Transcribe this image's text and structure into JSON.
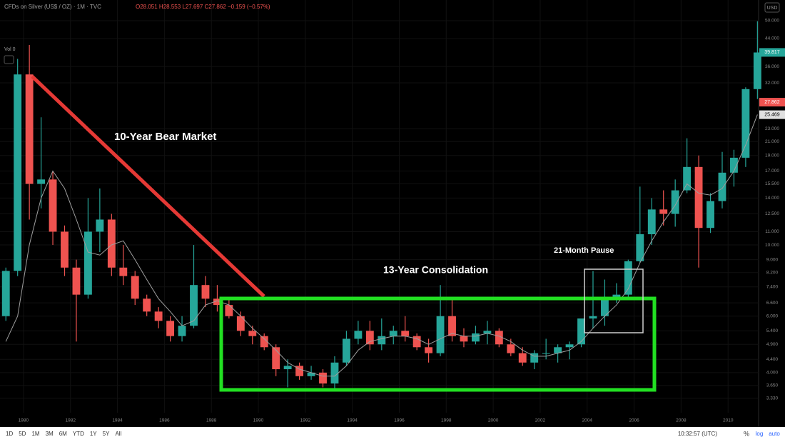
{
  "chart_data": {
    "type": "candlestick",
    "header": "CFDs on Silver (US$ / OZ) · 1M · TVC",
    "ohlc_legend": "O28.051 H28.553 L27.697 C27.862 −0.159 (−0.57%)",
    "volume_label": "Vol 0",
    "currency": "USD",
    "annotations": [
      "10-Year Bear Market",
      "13-Year Consolidation",
      "21-Month Pause"
    ],
    "log_scale": true,
    "up_color": "#26a69a",
    "down_color": "#ef5350",
    "ma_color": "#9e9e9e",
    "x": [
      1979.25,
      1979.75,
      1980.25,
      1980.75,
      1981.25,
      1981.75,
      1982.25,
      1982.75,
      1983.25,
      1983.75,
      1984.25,
      1984.75,
      1985.25,
      1985.75,
      1986.25,
      1986.75,
      1987.25,
      1987.75,
      1988.25,
      1988.75,
      1989.25,
      1989.75,
      1990.25,
      1990.75,
      1991.25,
      1991.75,
      1992.25,
      1992.75,
      1993.25,
      1993.75,
      1994.25,
      1994.75,
      1995.25,
      1995.75,
      1996.25,
      1996.75,
      1997.25,
      1997.75,
      1998.25,
      1998.75,
      1999.25,
      1999.75,
      2000.25,
      2000.75,
      2001.25,
      2001.75,
      2002.25,
      2002.75,
      2003.25,
      2003.75,
      2004.25,
      2004.75,
      2005.25,
      2005.75,
      2006.25,
      2006.75,
      2007.25,
      2007.75,
      2008.25,
      2008.75,
      2009.25,
      2009.75,
      2010.25,
      2010.75,
      2011.25
    ],
    "open": [
      6,
      8.3,
      34,
      15.5,
      16,
      11,
      8.5,
      7,
      11,
      12,
      8.5,
      8,
      6.8,
      6.2,
      5.8,
      5.2,
      5.6,
      7.5,
      6.8,
      6.5,
      6,
      5.4,
      5.2,
      4.8,
      4.1,
      4.2,
      3.9,
      4.0,
      3.7,
      4.3,
      5.1,
      5.4,
      4.9,
      5.2,
      5.4,
      5.2,
      4.8,
      4.6,
      6.0,
      5.2,
      5.0,
      5.3,
      5.4,
      4.9,
      4.6,
      4.3,
      4.6,
      4.6,
      4.8,
      4.9,
      5.9,
      6.0,
      6.8,
      7.0,
      8.9,
      10.8,
      12.9,
      12.5,
      14.8,
      17.5,
      11.3,
      13.7,
      16.8,
      18.7,
      30.6
    ],
    "high": [
      8.5,
      38,
      42,
      25,
      17,
      11.5,
      9,
      14,
      15,
      12.5,
      10,
      8.3,
      7,
      6.4,
      6,
      6,
      10,
      8,
      7.5,
      6.8,
      6.2,
      5.6,
      5.3,
      4.9,
      4.4,
      4.3,
      4.2,
      4.1,
      4.5,
      5.4,
      5.8,
      5.8,
      5.9,
      5.6,
      6.0,
      5.3,
      5.1,
      7.5,
      6.8,
      5.5,
      5.6,
      5.8,
      5.5,
      5.1,
      4.8,
      4.7,
      5.1,
      4.9,
      5.0,
      5.9,
      8.3,
      7.8,
      7.6,
      9.0,
      15.2,
      14.0,
      14.8,
      16.0,
      21.5,
      19.0,
      14.5,
      19.5,
      19.8,
      31,
      49.8
    ],
    "low": [
      5.8,
      8,
      12,
      13,
      10,
      8,
      5,
      6.8,
      9.5,
      8,
      7.5,
      6.5,
      6,
      5.5,
      5,
      5,
      5.5,
      6.4,
      6.2,
      5.9,
      5.2,
      4.9,
      4.7,
      3.9,
      3.6,
      3.8,
      3.8,
      3.6,
      3.55,
      4.2,
      4.9,
      4.7,
      4.7,
      4.9,
      5.0,
      4.7,
      4.3,
      4.5,
      5.0,
      4.8,
      4.9,
      4.9,
      4.8,
      4.5,
      4.2,
      4.1,
      4.4,
      4.3,
      4.4,
      4.8,
      5.5,
      5.6,
      6.6,
      6.9,
      8.8,
      10.0,
      11.5,
      11.4,
      14.5,
      8.5,
      10.9,
      13.0,
      15.2,
      17.5,
      28.5
    ],
    "close": [
      8.3,
      34,
      15.5,
      16,
      11,
      8.5,
      7,
      11,
      12,
      8.5,
      8,
      6.8,
      6.2,
      5.8,
      5.2,
      5.6,
      7.5,
      6.8,
      6.5,
      6,
      5.4,
      5.2,
      4.8,
      4.1,
      4.2,
      3.9,
      4.0,
      3.7,
      4.3,
      5.1,
      5.4,
      4.9,
      5.2,
      5.4,
      5.2,
      4.8,
      4.6,
      6.0,
      5.2,
      5.0,
      5.3,
      5.4,
      4.9,
      4.6,
      4.3,
      4.6,
      4.6,
      4.8,
      4.9,
      5.9,
      6.0,
      6.8,
      7.0,
      8.9,
      10.8,
      12.9,
      12.5,
      14.8,
      17.5,
      11.3,
      13.7,
      16.8,
      18.7,
      30.6,
      39.8
    ],
    "moving_average": [
      5,
      6,
      10,
      14,
      17,
      15,
      12,
      9.5,
      9.3,
      10,
      10.3,
      9,
      7.8,
      6.8,
      6.2,
      5.6,
      5.8,
      6.5,
      6.7,
      6.5,
      6.0,
      5.5,
      5.1,
      4.7,
      4.3,
      4.1,
      4.0,
      3.9,
      3.9,
      4.2,
      4.7,
      5.0,
      5.1,
      5.2,
      5.2,
      5.1,
      4.9,
      5.1,
      5.3,
      5.2,
      5.2,
      5.3,
      5.2,
      5.0,
      4.7,
      4.5,
      4.5,
      4.6,
      4.7,
      5.0,
      5.5,
      6.0,
      6.5,
      7.3,
      8.8,
      10.3,
      11.8,
      13.3,
      15.5,
      14.5,
      14.3,
      15.0,
      17.0,
      20.5,
      25.5
    ],
    "xlim": [
      1979.0,
      2011.3
    ],
    "xticks": [
      1980,
      1982,
      1984,
      1986,
      1988,
      1990,
      1992,
      1994,
      1996,
      1998,
      2000,
      2002,
      2004,
      2006,
      2008,
      2010
    ],
    "ylim": [
      3.0,
      58.0
    ],
    "yticks": [
      {
        "value": 3.33,
        "label": "3.330"
      },
      {
        "value": 3.65,
        "label": "3.650"
      },
      {
        "value": 4,
        "label": "4.000"
      },
      {
        "value": 4.4,
        "label": "4.400"
      },
      {
        "value": 4.9,
        "label": "4.900"
      },
      {
        "value": 5.4,
        "label": "5.400"
      },
      {
        "value": 6,
        "label": "6.000"
      },
      {
        "value": 6.6,
        "label": "6.600"
      },
      {
        "value": 7.4,
        "label": "7.400"
      },
      {
        "value": 8.2,
        "label": "8.200"
      },
      {
        "value": 9,
        "label": "9.000"
      },
      {
        "value": 10,
        "label": "10.000"
      },
      {
        "value": 11,
        "label": "11.000"
      },
      {
        "value": 12.5,
        "label": "12.500"
      },
      {
        "value": 14,
        "label": "14.000"
      },
      {
        "value": 15.5,
        "label": "15.500"
      },
      {
        "value": 17,
        "label": "17.000"
      },
      {
        "value": 19,
        "label": "19.000"
      },
      {
        "value": 21,
        "label": "21.000"
      },
      {
        "value": 23,
        "label": "23.000"
      },
      {
        "value": 32,
        "label": "32.000"
      },
      {
        "value": 36,
        "label": "36.000"
      },
      {
        "value": 44,
        "label": "44.000"
      },
      {
        "value": 50,
        "label": "50.000"
      }
    ],
    "price_marks": [
      {
        "value": 39.817,
        "color": "#26a69a"
      },
      {
        "value": 27.862,
        "color": "#ef5350"
      },
      {
        "value": 25.469,
        "color": "#e0e0e0"
      }
    ]
  },
  "toolbar": {
    "timeframes": [
      "1D",
      "5D",
      "1M",
      "3M",
      "6M",
      "YTD",
      "1Y",
      "5Y",
      "All"
    ],
    "clock": "10:32:57 (UTC)",
    "percent": "%",
    "log": "log",
    "auto": "auto"
  }
}
